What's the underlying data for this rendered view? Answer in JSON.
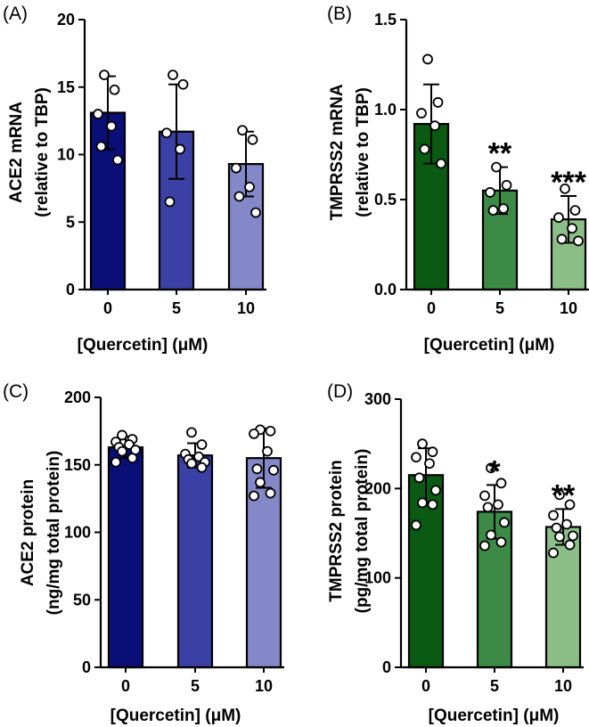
{
  "chart_data": [
    {
      "type": "bar",
      "panel": "(A)",
      "title": "",
      "categories": [
        "0",
        "5",
        "10"
      ],
      "values": [
        13.1,
        11.7,
        9.3
      ],
      "errors": [
        2.7,
        3.5,
        2.4
      ],
      "points": [
        [
          15.9,
          14.8,
          13.0,
          12.1,
          10.6,
          9.6
        ],
        [
          15.9,
          15.2,
          11.6,
          10.4,
          6.5
        ],
        [
          11.8,
          11.1,
          9.0,
          7.6,
          6.9,
          5.7
        ]
      ],
      "colors": [
        "#0a0f78",
        "#3b40a4",
        "#8588c8"
      ],
      "xlabel": "[Quercetin] (μM)",
      "ylabel": [
        "ACE2 mRNA",
        "(relative to TBP)"
      ],
      "ylim": [
        0,
        20
      ],
      "yticks": [
        "0",
        "5",
        "10",
        "15",
        "20"
      ],
      "annotations": [
        "",
        "",
        ""
      ]
    },
    {
      "type": "bar",
      "panel": "(B)",
      "title": "",
      "categories": [
        "0",
        "5",
        "10"
      ],
      "values": [
        0.92,
        0.55,
        0.39
      ],
      "errors": [
        0.22,
        0.13,
        0.13
      ],
      "points": [
        [
          1.28,
          1.04,
          0.98,
          0.91,
          0.78,
          0.7
        ],
        [
          0.68,
          0.58,
          0.54,
          0.45,
          0.44
        ],
        [
          0.56,
          0.44,
          0.4,
          0.34,
          0.28,
          0.27
        ]
      ],
      "colors": [
        "#0a5a14",
        "#3c8a46",
        "#8cbe88"
      ],
      "xlabel": "[Quercetin] (μM)",
      "ylabel": [
        "TMPRSS2 mRNA",
        "(relative to TBP)"
      ],
      "ylim": [
        0,
        1.5
      ],
      "yticks": [
        "0.0",
        "0.5",
        "1.0",
        "1.5"
      ],
      "annotations": [
        "",
        "**",
        "***"
      ]
    },
    {
      "type": "bar",
      "panel": "(C)",
      "title": "",
      "categories": [
        "0",
        "5",
        "10"
      ],
      "values": [
        163,
        157,
        155
      ],
      "errors": [
        8,
        9,
        22
      ],
      "points": [
        [
          172,
          169,
          167,
          165,
          163,
          161,
          160,
          155,
          152
        ],
        [
          174,
          165,
          158,
          156,
          154,
          152,
          151,
          148
        ],
        [
          176,
          175,
          173,
          160,
          147,
          146,
          137,
          129,
          127
        ]
      ],
      "colors": [
        "#0a0f78",
        "#3b40a4",
        "#8588c8"
      ],
      "xlabel": "[Quercetin] (μM)",
      "ylabel": [
        "ACE2 protein",
        "(ng/mg total protein)"
      ],
      "ylim": [
        0,
        200
      ],
      "yticks": [
        "0",
        "50",
        "100",
        "150",
        "200"
      ],
      "annotations": [
        "",
        "",
        ""
      ]
    },
    {
      "type": "bar",
      "panel": "(D)",
      "title": "",
      "categories": [
        "0",
        "5",
        "10"
      ],
      "values": [
        215,
        174,
        157
      ],
      "errors": [
        30,
        30,
        20
      ],
      "points": [
        [
          250,
          241,
          235,
          228,
          212,
          198,
          184,
          182,
          159
        ],
        [
          223,
          206,
          192,
          182,
          179,
          162,
          148,
          140,
          136
        ],
        [
          193,
          182,
          170,
          160,
          156,
          147,
          146,
          137,
          128
        ]
      ],
      "colors": [
        "#0a5a14",
        "#3c8a46",
        "#8cbe88"
      ],
      "xlabel": "[Quercetin] (μM)",
      "ylabel": [
        "TMPRSS2 protein",
        "(pg/mg total protein)"
      ],
      "ylim": [
        0,
        300
      ],
      "yticks": [
        "0",
        "100",
        "200",
        "300"
      ],
      "annotations": [
        "",
        "*",
        "**"
      ]
    }
  ]
}
